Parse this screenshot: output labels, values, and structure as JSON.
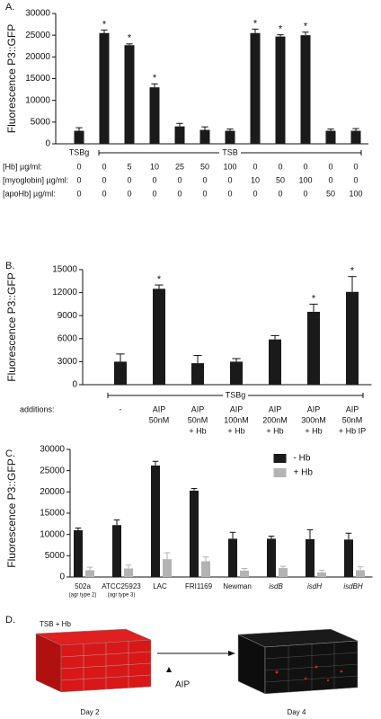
{
  "chart_data": [
    {
      "type": "bar",
      "panel": "A.",
      "y_label": "Fluorescence  P3::GFP",
      "ylim": [
        0,
        30000
      ],
      "yticks": [
        0,
        5000,
        10000,
        15000,
        20000,
        25000,
        30000
      ],
      "color": "#1a1a1a",
      "categories": [
        "TSBg",
        null,
        null,
        null,
        null,
        null,
        null,
        null,
        null,
        null,
        null,
        null
      ],
      "values": [
        3000,
        25500,
        22700,
        13000,
        4000,
        3200,
        3000,
        25500,
        24700,
        25000,
        3000,
        3000
      ],
      "errors": [
        700,
        700,
        300,
        800,
        700,
        700,
        400,
        900,
        400,
        700,
        400,
        500
      ],
      "stars": [
        null,
        "*",
        "*",
        "*",
        null,
        null,
        null,
        "*",
        "*",
        "*",
        null,
        null
      ],
      "bracket_label": "TSB",
      "conditions": [
        {
          "label": "[Hb] µg/ml:",
          "values": [
            0,
            0,
            5,
            10,
            25,
            50,
            100,
            0,
            0,
            0,
            0,
            0
          ]
        },
        {
          "label": "[myoglobin] µg/ml:",
          "values": [
            0,
            0,
            0,
            0,
            0,
            0,
            0,
            10,
            50,
            100,
            0,
            0
          ]
        },
        {
          "label": "[apoHb] µg/ml:",
          "values": [
            0,
            0,
            0,
            0,
            0,
            0,
            0,
            0,
            0,
            0,
            50,
            100
          ]
        }
      ]
    },
    {
      "type": "bar",
      "panel": "B.",
      "y_label": "Fluorescence  P3::GFP",
      "ylim": [
        0,
        15000
      ],
      "yticks": [
        0,
        3000,
        6000,
        9000,
        12000,
        15000
      ],
      "color": "#1a1a1a",
      "categories": [
        [
          "-"
        ],
        [
          "AIP",
          "50nM"
        ],
        [
          "AIP",
          "50nM",
          "+ Hb"
        ],
        [
          "AIP",
          "100nM",
          "+ Hb"
        ],
        [
          "AIP",
          "200nM",
          "+ Hb"
        ],
        [
          "AIP",
          "300nM",
          "+ Hb"
        ],
        [
          "AIP",
          "50nM",
          "+ Hb IP"
        ]
      ],
      "values": [
        3000,
        12500,
        2800,
        3000,
        5900,
        9500,
        12100
      ],
      "errors": [
        1000,
        500,
        1000,
        400,
        500,
        1000,
        2000
      ],
      "stars": [
        null,
        "*",
        null,
        null,
        null,
        "*",
        "*"
      ],
      "bracket_label": "TSBg",
      "row_label": "additions:"
    },
    {
      "type": "grouped_bar",
      "panel": "C.",
      "y_label": "Fluorescence  P3::GFP",
      "ylim": [
        0,
        30000
      ],
      "yticks": [
        0,
        5000,
        10000,
        15000,
        20000,
        25000,
        30000
      ],
      "legend": "upper right",
      "categories": [
        "502a",
        "ATCC25923",
        "LAC",
        "FRI1169",
        "Newman",
        "isdB",
        "isdH",
        "isdBH"
      ],
      "category_notes": [
        "(agr type 2)",
        "(agr type 3)",
        null,
        null,
        null,
        null,
        null,
        null
      ],
      "italic_categories": [
        false,
        false,
        false,
        false,
        false,
        true,
        true,
        true
      ],
      "series": [
        {
          "name": "- Hb",
          "color": "#1a1a1a",
          "values": [
            11000,
            12200,
            26200,
            20300,
            9000,
            9000,
            8900,
            8800
          ],
          "errors": [
            500,
            1200,
            1000,
            500,
            1500,
            600,
            2200,
            1500
          ]
        },
        {
          "name": "+ Hb",
          "color": "#b3b3b3",
          "values": [
            1600,
            2000,
            4200,
            3700,
            1500,
            2100,
            1100,
            1600
          ],
          "errors": [
            700,
            800,
            1500,
            1000,
            500,
            400,
            500,
            800
          ]
        }
      ]
    }
  ],
  "panel_d": {
    "letter": "D.",
    "left_label": "TSB + Hb",
    "arrow_label": "AIP",
    "left_caption": "Day 2",
    "right_caption": "Day 4"
  }
}
